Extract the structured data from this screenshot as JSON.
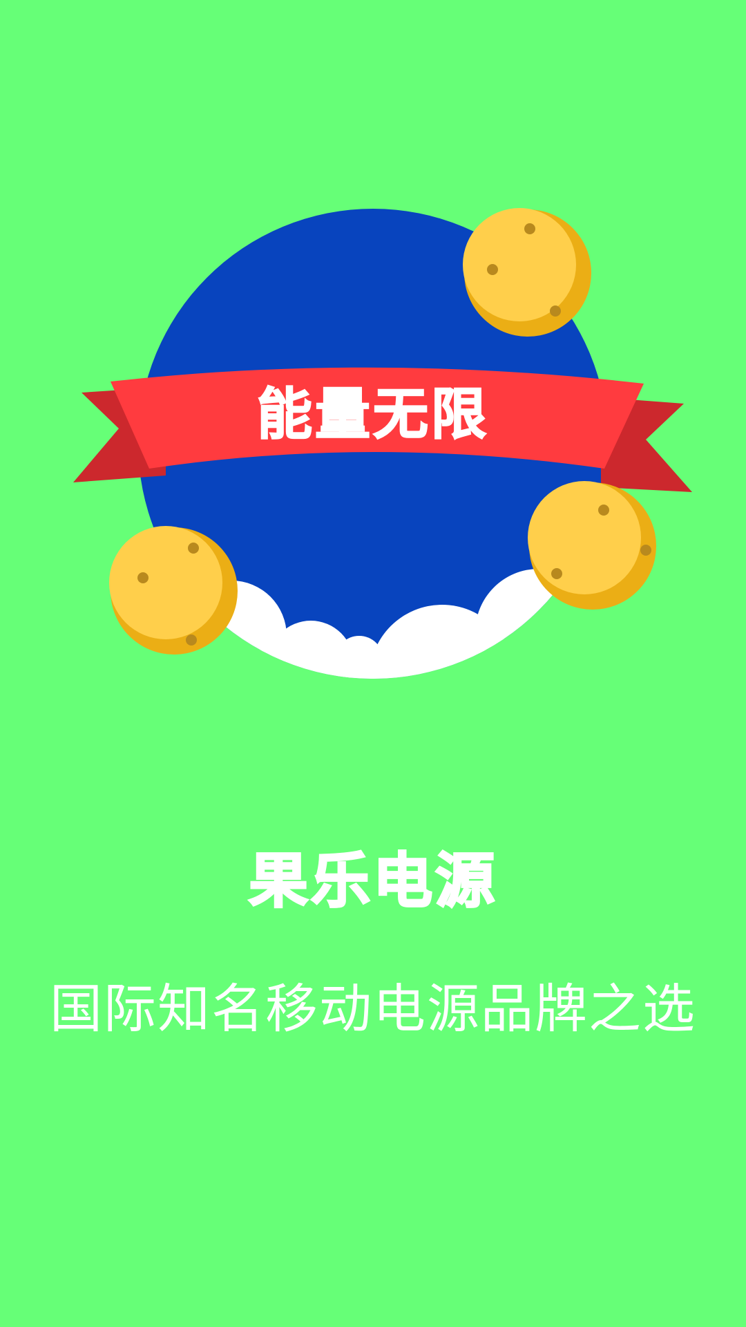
{
  "colors": {
    "background": "#66FF77",
    "circle": "#0844BE",
    "cloud": "#FFFFFF",
    "ribbon": "#FF3B3F",
    "ribbon_shadow": "#CC282D",
    "ball_light": "#FFCF4B",
    "ball_dark": "#EBAE15",
    "ball_spot": "#B8891E",
    "text": "#FFFFFF"
  },
  "banner": {
    "text": "能量无限"
  },
  "brand": {
    "title": "果乐电源",
    "tagline": "国际知名移动电源品牌之选"
  },
  "icons": {
    "balls": [
      "orange-ball-icon",
      "orange-ball-icon",
      "orange-ball-icon"
    ],
    "cloud": "cloud-icon"
  }
}
